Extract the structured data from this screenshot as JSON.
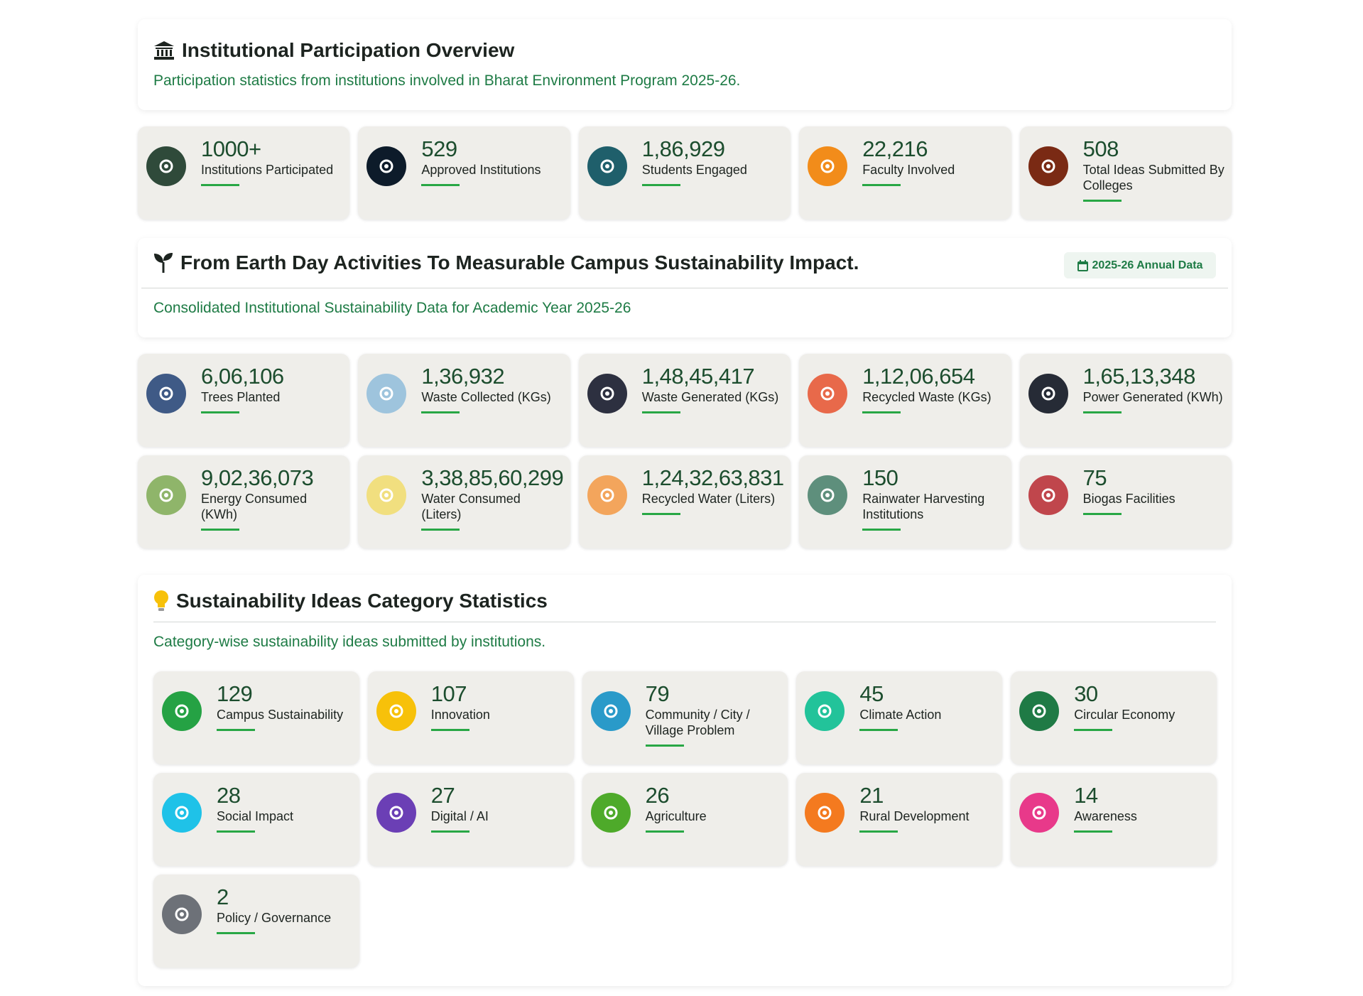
{
  "participation": {
    "title": "Institutional Participation Overview",
    "subtitle": "Participation statistics from institutions involved in Bharat Environment Program 2025-26.",
    "stats": [
      {
        "value": "1000+",
        "label": "Institutions Participated",
        "color": "#2f4a3a"
      },
      {
        "value": "529",
        "label": "Approved Institutions",
        "color": "#0d1b2a"
      },
      {
        "value": "1,86,929",
        "label": "Students Engaged",
        "color": "#1f5f6b"
      },
      {
        "value": "22,216",
        "label": "Faculty Involved",
        "color": "#f28c1a"
      },
      {
        "value": "508",
        "label": "Total Ideas Submitted By Colleges",
        "color": "#7a2a14"
      }
    ]
  },
  "impact": {
    "title": "From Earth Day Activities To Measurable Campus Sustainability Impact.",
    "badge": "2025-26 Annual Data",
    "subtitle": "Consolidated Institutional Sustainability Data for Academic Year 2025-26",
    "stats": [
      {
        "value": "6,06,106",
        "label": "Trees Planted",
        "color": "#3f5a86"
      },
      {
        "value": "1,36,932",
        "label": "Waste Collected (KGs)",
        "color": "#9ec4dd"
      },
      {
        "value": "1,48,45,417",
        "label": "Waste Generated (KGs)",
        "color": "#2d3040"
      },
      {
        "value": "1,12,06,654",
        "label": "Recycled Waste (KGs)",
        "color": "#e8694a"
      },
      {
        "value": "1,65,13,348",
        "label": "Power Generated (KWh)",
        "color": "#262b36"
      },
      {
        "value": "9,02,36,073",
        "label": "Energy Consumed (KWh)",
        "color": "#8fb56a"
      },
      {
        "value": "3,38,85,60,299",
        "label": "Water Consumed (Liters)",
        "color": "#f1df7f"
      },
      {
        "value": "1,24,32,63,831",
        "label": "Recycled Water (Liters)",
        "color": "#f3a55c"
      },
      {
        "value": "150",
        "label": "Rainwater Harvesting Institutions",
        "color": "#5e8f7c"
      },
      {
        "value": "75",
        "label": "Biogas Facilities",
        "color": "#c0464c"
      }
    ]
  },
  "ideas": {
    "title": "Sustainability Ideas Category Statistics",
    "subtitle": "Category-wise sustainability ideas submitted by institutions.",
    "stats": [
      {
        "value": "129",
        "label": "Campus Sustainability",
        "color": "#25a244"
      },
      {
        "value": "107",
        "label": "Innovation",
        "color": "#f7c10a"
      },
      {
        "value": "79",
        "label": "Community / City / Village Problem",
        "color": "#2a9ac9"
      },
      {
        "value": "45",
        "label": "Climate Action",
        "color": "#22c39a"
      },
      {
        "value": "30",
        "label": "Circular Economy",
        "color": "#1f7a45"
      },
      {
        "value": "28",
        "label": "Social Impact",
        "color": "#1fc2e8"
      },
      {
        "value": "27",
        "label": "Digital / AI",
        "color": "#6b3fb5"
      },
      {
        "value": "26",
        "label": "Agriculture",
        "color": "#4eaa2a"
      },
      {
        "value": "21",
        "label": "Rural Development",
        "color": "#f47a1f"
      },
      {
        "value": "14",
        "label": "Awareness",
        "color": "#e8398a"
      },
      {
        "value": "2",
        "label": "Policy / Governance",
        "color": "#6d7178"
      }
    ]
  }
}
